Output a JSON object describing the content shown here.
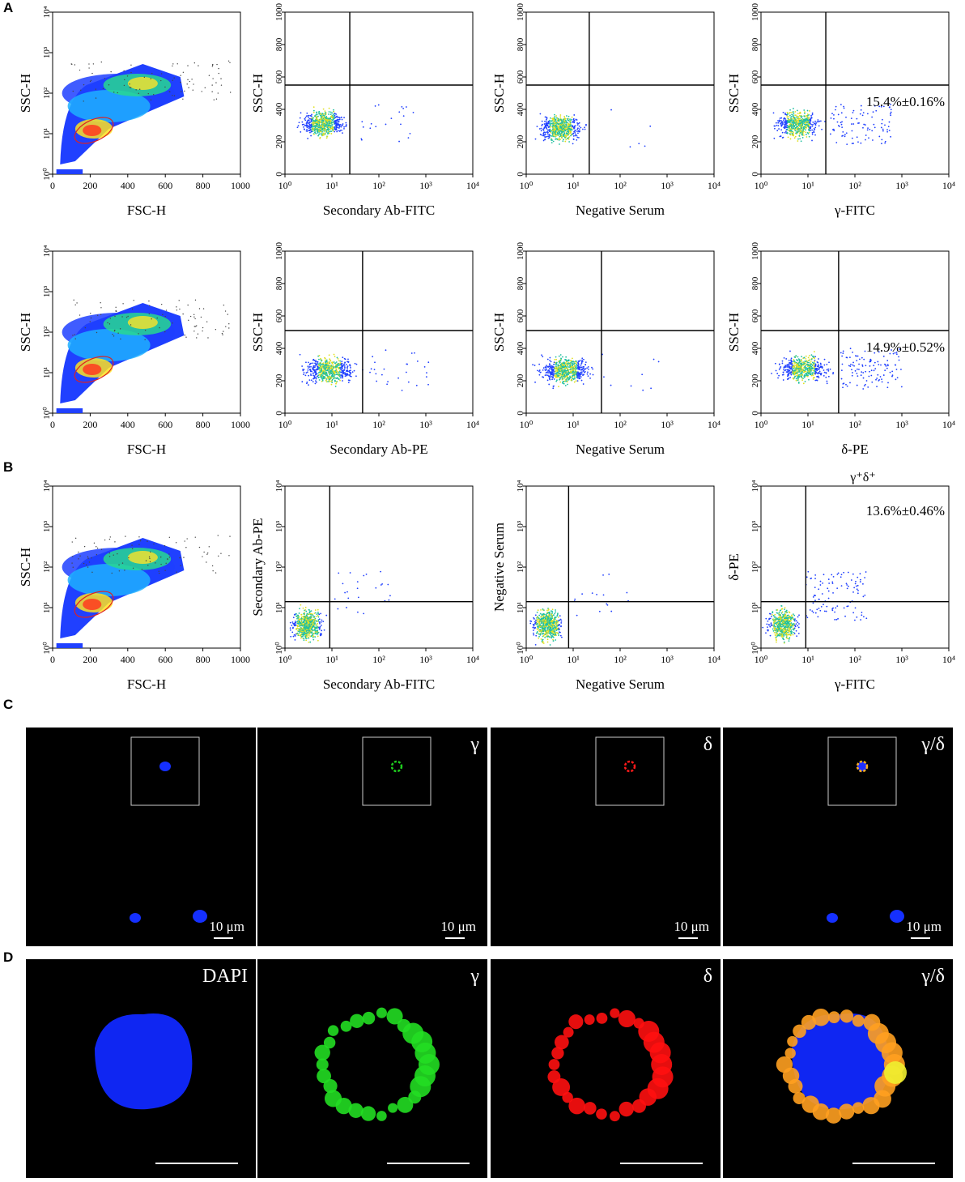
{
  "panel_labels": [
    "A",
    "B",
    "C",
    "D"
  ],
  "flow_rows": [
    {
      "cells": [
        {
          "kind": "density",
          "xlabel": "FSC-H",
          "ylabel": "SSC-H"
        },
        {
          "kind": "linear",
          "xlabel": "Secondary Ab-FITC",
          "ylabel": "SSC-H",
          "gate": {
            "x": 24,
            "y": 550
          },
          "cloud": {
            "x0": 1.4,
            "x1": 30,
            "y0": 190,
            "y1": 430,
            "tail": 0.02
          },
          "percent": ""
        },
        {
          "kind": "linear",
          "xlabel": "Negative Serum",
          "ylabel": "SSC-H",
          "gate": {
            "x": 22,
            "y": 550
          },
          "cloud": {
            "x0": 1.2,
            "x1": 25,
            "y0": 160,
            "y1": 410,
            "tail": 0.01
          },
          "percent": ""
        },
        {
          "kind": "linear",
          "xlabel": "γ-FITC",
          "ylabel": "SSC-H",
          "gate": {
            "x": 24,
            "y": 550
          },
          "cloud": {
            "x0": 1.3,
            "x1": 30,
            "y0": 180,
            "y1": 430,
            "tail": 0.16
          },
          "percent": "15.4%±0.16%"
        }
      ]
    },
    {
      "cells": [
        {
          "kind": "density",
          "xlabel": "FSC-H",
          "ylabel": "SSC-H"
        },
        {
          "kind": "linear",
          "xlabel": "Secondary Ab-PE",
          "ylabel": "SSC-H",
          "gate": {
            "x": 45,
            "y": 510
          },
          "cloud": {
            "x0": 1.3,
            "x1": 60,
            "y0": 140,
            "y1": 390,
            "tail": 0.04
          },
          "percent": ""
        },
        {
          "kind": "linear",
          "xlabel": "Negative Serum",
          "ylabel": "SSC-H",
          "gate": {
            "x": 40,
            "y": 510
          },
          "cloud": {
            "x0": 1.2,
            "x1": 40,
            "y0": 140,
            "y1": 390,
            "tail": 0.02
          },
          "percent": ""
        },
        {
          "kind": "linear",
          "xlabel": "δ-PE",
          "ylabel": "SSC-H",
          "gate": {
            "x": 45,
            "y": 510
          },
          "cloud": {
            "x0": 1.3,
            "x1": 50,
            "y0": 150,
            "y1": 400,
            "tail": 0.15
          },
          "percent": "14.9%±0.52%"
        }
      ]
    },
    {
      "cells": [
        {
          "kind": "density",
          "xlabel": "FSC-H",
          "ylabel": "SSC-H"
        },
        {
          "kind": "log",
          "xlabel": "Secondary Ab-FITC",
          "ylabel": "Secondary Ab-PE",
          "gate": {
            "x": 9,
            "y": 14
          },
          "cloud": {
            "x0": 1,
            "x1": 9,
            "y0": 1,
            "y1": 14,
            "tail": 0.03
          },
          "percent": "",
          "title": ""
        },
        {
          "kind": "log",
          "xlabel": "Negative Serum",
          "ylabel": "Negative Serum",
          "gate": {
            "x": 8,
            "y": 14
          },
          "cloud": {
            "x0": 1,
            "x1": 8,
            "y0": 1,
            "y1": 14,
            "tail": 0.03
          },
          "percent": "",
          "title": ""
        },
        {
          "kind": "log",
          "xlabel": "γ-FITC",
          "ylabel": "δ-PE",
          "gate": {
            "x": 9,
            "y": 14
          },
          "cloud": {
            "x0": 1,
            "x1": 9,
            "y0": 1,
            "y1": 14,
            "tail": 0.14
          },
          "percent": "13.6%±0.46%",
          "title": "γ⁺δ⁺"
        }
      ]
    }
  ],
  "axes": {
    "fsc_ticks": [
      "0",
      "200",
      "400",
      "600",
      "800",
      "1000"
    ],
    "ssc_linear_ticks": [
      "0",
      "200",
      "400",
      "600",
      "800",
      "1000"
    ],
    "log_ticks": [
      "10⁰",
      "10¹",
      "10²",
      "10³",
      "10⁴"
    ]
  },
  "micrographs_c": [
    {
      "label": "",
      "color": "#1530ff",
      "scale": "10 μm",
      "cells": true
    },
    {
      "label": "γ",
      "color": "#1fcc1f",
      "scale": "10 μm",
      "cells": false
    },
    {
      "label": "δ",
      "color": "#ff1a1a",
      "scale": "10 μm",
      "cells": false
    },
    {
      "label": "γ/δ",
      "color": "#ffb020",
      "scale": "10 μm",
      "cells": true
    }
  ],
  "micrographs_d": [
    {
      "label": "DAPI",
      "kind": "dapi"
    },
    {
      "label": "γ",
      "kind": "green"
    },
    {
      "label": "δ",
      "kind": "red"
    },
    {
      "label": "γ/δ",
      "kind": "merge"
    }
  ],
  "colors": {
    "gate_line": "#000000",
    "density_gate": "#dd2222",
    "dot_cool": "#2040ff",
    "dot_mid": "#20c0a0",
    "dot_hot": "#e0e020"
  }
}
